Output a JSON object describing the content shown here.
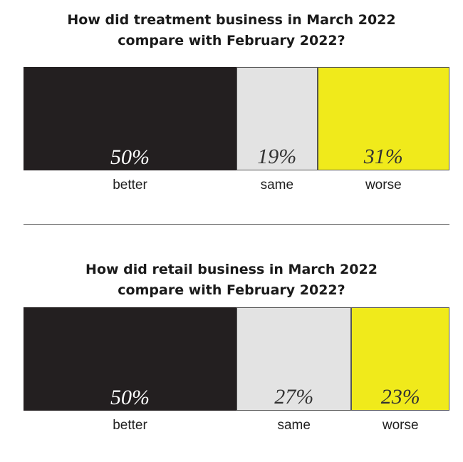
{
  "chart_data": [
    {
      "type": "bar",
      "stacked": true,
      "orientation": "horizontal",
      "title": "How did treatment business in March 2022 compare with February 2022?",
      "title_lines": [
        "How did treatment business in March 2022",
        "compare with February 2022?"
      ],
      "categories": [
        "better",
        "same",
        "worse"
      ],
      "values": [
        50,
        19,
        31
      ],
      "value_labels": [
        "50%",
        "19%",
        "31%"
      ],
      "unit": "%",
      "colors": [
        "#231f20",
        "#e3e3e3",
        "#f0ea1b"
      ],
      "value_label_colors": [
        "#ffffff",
        "#333333",
        "#333333"
      ]
    },
    {
      "type": "bar",
      "stacked": true,
      "orientation": "horizontal",
      "title": "How did retail business in March 2022 compare with February 2022?",
      "title_lines": [
        "How did retail business in March 2022",
        "compare with February 2022?"
      ],
      "categories": [
        "better",
        "same",
        "worse"
      ],
      "values": [
        50,
        27,
        23
      ],
      "value_labels": [
        "50%",
        "27%",
        "23%"
      ],
      "unit": "%",
      "colors": [
        "#231f20",
        "#e3e3e3",
        "#f0ea1b"
      ],
      "value_label_colors": [
        "#ffffff",
        "#333333",
        "#333333"
      ]
    }
  ]
}
